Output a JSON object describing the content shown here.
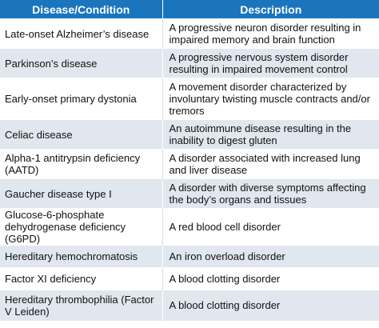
{
  "header": {
    "col1": "Disease/Condition",
    "col2": "Description"
  },
  "rows": [
    {
      "condition": "Late-onset Alzheimer’s disease",
      "description": "A progressive neuron disorder resulting in impaired memory and brain function"
    },
    {
      "condition": "Parkinson’s disease",
      "description": "A progressive nervous system disorder resulting in impaired movement control"
    },
    {
      "condition": "Early-onset primary dystonia",
      "description": "A movement disorder characterized by involuntary twisting muscle contracts and/or tremors"
    },
    {
      "condition": "Celiac disease",
      "description": "An autoimmune disease resulting in the inability to digest gluten"
    },
    {
      "condition": "Alpha-1 antitrypsin deficiency (AATD)",
      "description": "A disorder associated with increased lung and liver disease"
    },
    {
      "condition": "Gaucher disease type I",
      "description": "A disorder with diverse symptoms affecting the body’s organs and tissues"
    },
    {
      "condition": "Glucose-6-phosphate dehydrogenase deficiency (G6PD)",
      "description": "A red blood cell disorder"
    },
    {
      "condition": "Hereditary hemochromatosis",
      "description": "An iron overload disorder"
    },
    {
      "condition": "Factor XI deficiency",
      "description": "A blood clotting disorder"
    },
    {
      "condition": "Hereditary thrombophilia (Factor V Leiden)",
      "description": "A blood clotting disorder"
    }
  ],
  "colors": {
    "header_bg": "#1a75bd",
    "header_text": "#ffffff",
    "stripe_bg": "#e1e7ee"
  }
}
